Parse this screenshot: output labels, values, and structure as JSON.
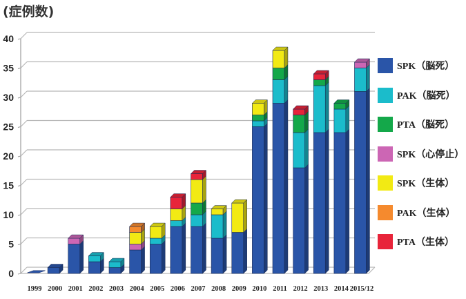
{
  "chart_data": {
    "type": "bar",
    "stacked": true,
    "title": "",
    "ylabel": "(症例数)",
    "xlabel": "",
    "ylim": [
      0,
      40
    ],
    "yticks": [
      0,
      5,
      10,
      15,
      20,
      25,
      30,
      35,
      40
    ],
    "grid": true,
    "legend_position": "right",
    "categories": [
      "1999",
      "2000",
      "2001",
      "2002",
      "2003",
      "2004",
      "2005",
      "2006",
      "2007",
      "2008",
      "2009",
      "2010",
      "2011",
      "2012",
      "2013",
      "2014",
      "2015/12"
    ],
    "series": [
      {
        "name": "SPK（脳死）",
        "color": "#2a55a8",
        "values": [
          0,
          1,
          5,
          2,
          1,
          4,
          5,
          8,
          8,
          6,
          7,
          25,
          29,
          18,
          24,
          24,
          31
        ]
      },
      {
        "name": "PAK（脳死）",
        "color": "#1bbccb",
        "values": [
          0,
          0,
          0,
          1,
          1,
          0,
          1,
          1,
          2,
          4,
          0,
          1,
          4,
          6,
          8,
          4,
          4
        ]
      },
      {
        "name": "PTA（脳死）",
        "color": "#14a84a",
        "values": [
          0,
          0,
          0,
          0,
          0,
          0,
          0,
          0,
          2,
          0,
          0,
          1,
          2,
          3,
          1,
          1,
          0
        ]
      },
      {
        "name": "SPK（心停止）",
        "color": "#cc66b4",
        "values": [
          0,
          0,
          1,
          0,
          0,
          1,
          0,
          0,
          0,
          0,
          0,
          0,
          0,
          0,
          0,
          0,
          1
        ]
      },
      {
        "name": "SPK（生体）",
        "color": "#f2ea14",
        "values": [
          0,
          0,
          0,
          0,
          0,
          2,
          2,
          2,
          4,
          1,
          5,
          2,
          3,
          0,
          0,
          0,
          0
        ]
      },
      {
        "name": "PAK（生体）",
        "color": "#f58a2e",
        "values": [
          0,
          0,
          0,
          0,
          0,
          1,
          0,
          0,
          0,
          0,
          0,
          0,
          0,
          0,
          0,
          0,
          0
        ]
      },
      {
        "name": "PTA（生体）",
        "color": "#e8243a",
        "values": [
          0,
          0,
          0,
          0,
          0,
          0,
          0,
          2,
          1,
          0,
          0,
          0,
          0,
          1,
          1,
          0,
          0
        ]
      }
    ]
  }
}
